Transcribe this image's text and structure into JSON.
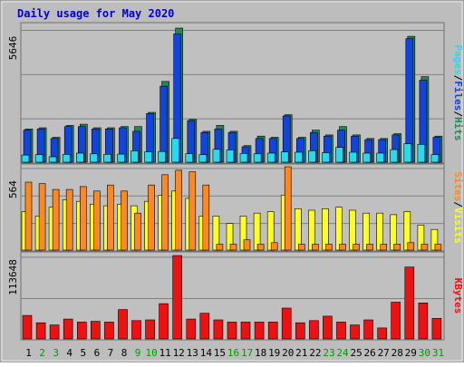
{
  "chart_data": {
    "type": "bar",
    "title": "Daily usage for May 2020",
    "days": [
      "1",
      "2",
      "3",
      "4",
      "5",
      "6",
      "7",
      "8",
      "9",
      "10",
      "11",
      "12",
      "13",
      "14",
      "15",
      "16",
      "17",
      "18",
      "19",
      "20",
      "21",
      "22",
      "23",
      "24",
      "25",
      "26",
      "27",
      "28",
      "29",
      "30",
      "31"
    ],
    "weekend_days": [
      "2",
      "3",
      "9",
      "10",
      "16",
      "17",
      "23",
      "24",
      "30",
      "31"
    ],
    "panels": [
      {
        "id": "top",
        "max_label": "5646",
        "ymax": 5646,
        "series": [
          {
            "name": "Hits",
            "color": "#228855",
            "values": [
              1400,
              1450,
              1050,
              1550,
              1600,
              1450,
              1450,
              1500,
              1500,
              2100,
              3400,
              5646,
              1800,
              1300,
              1550,
              1300,
              700,
              1100,
              1050,
              2000,
              1050,
              1350,
              1150,
              1500,
              1150,
              1000,
              1000,
              1200,
              5300,
              3600,
              1100
            ]
          },
          {
            "name": "Files",
            "color": "#1144dd",
            "values": [
              1350,
              1400,
              1000,
              1500,
              1500,
              1400,
              1400,
              1450,
              1300,
              2050,
              3200,
              5400,
              1750,
              1250,
              1400,
              1250,
              650,
              1000,
              1000,
              1950,
              1000,
              1250,
              1100,
              1350,
              1100,
              950,
              950,
              1150,
              5200,
              3450,
              1050
            ]
          },
          {
            "name": "Pages",
            "color": "#22ddee",
            "values": [
              300,
              320,
              230,
              330,
              380,
              350,
              330,
              340,
              480,
              440,
              450,
              1000,
              360,
              320,
              540,
              520,
              370,
              350,
              380,
              430,
              420,
              480,
              400,
              620,
              420,
              380,
              380,
              530,
              780,
              750,
              320
            ]
          }
        ],
        "legend": [
          "Pages",
          "/",
          "Files",
          "/",
          "Hits"
        ]
      },
      {
        "id": "middle",
        "max_label": "564",
        "ymax": 564,
        "series": [
          {
            "name": "Visits",
            "color": "#ffff22",
            "values": [
              260,
              230,
              290,
              340,
              330,
              310,
              300,
              310,
              300,
              330,
              370,
              400,
              350,
              230,
              230,
              180,
              230,
              250,
              260,
              370,
              280,
              270,
              280,
              290,
              270,
              250,
              250,
              240,
              260,
              170,
              140
            ]
          },
          {
            "name": "Sites",
            "color": "#ff8822",
            "values": [
              460,
              450,
              410,
              410,
              430,
              400,
              440,
              400,
              250,
              440,
              510,
              540,
              530,
              440,
              40,
              40,
              70,
              40,
              50,
              564,
              40,
              40,
              40,
              40,
              40,
              40,
              40,
              40,
              50,
              40,
              40
            ]
          }
        ],
        "legend": [
          "Sites",
          "/",
          "Visits"
        ]
      },
      {
        "id": "bottom",
        "max_label": "113648",
        "ymax": 113648,
        "series": [
          {
            "name": "KBytes",
            "color": "#ee1111",
            "values": [
              32000,
              22000,
              19000,
              27000,
              23000,
              24000,
              23000,
              40000,
              25000,
              26000,
              48000,
              113648,
              27000,
              35000,
              26000,
              23000,
              23000,
              23000,
              23000,
              42000,
              22000,
              25000,
              31000,
              23000,
              19000,
              26000,
              15000,
              50000,
              98000,
              49000,
              28000
            ]
          }
        ],
        "legend": [
          "KBytes"
        ]
      }
    ]
  },
  "colors": {
    "plot_background": "#c0c0c0",
    "frame_background": "#bdbdbd",
    "title": "#0000cc",
    "weekday_label": "#000000",
    "weekend_label": "#009900",
    "legend_separator": "#000000",
    "grid": "#808080"
  }
}
